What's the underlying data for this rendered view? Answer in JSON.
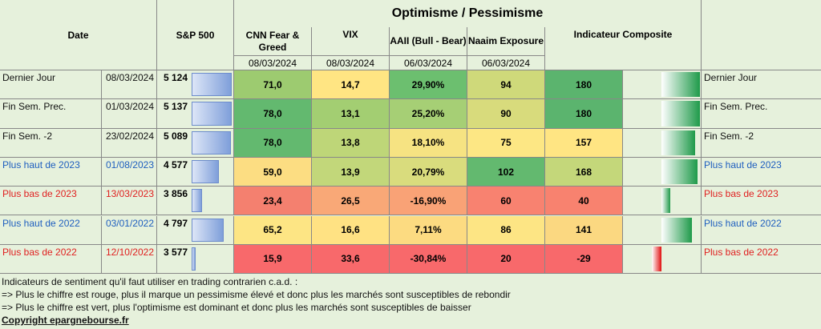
{
  "headers": {
    "date": "Date",
    "sp500": "S&P 500",
    "group": "Optimisme / Pessimisme",
    "cnn": "CNN Fear & Greed",
    "vix": "VIX",
    "aaii": "AAII (Bull - Bear)",
    "naaim": "Naaim Exposure",
    "composite": "Indicateur Composite",
    "cnn_date": "08/03/2024",
    "vix_date": "08/03/2024",
    "aaii_date": "06/03/2024",
    "naaim_date": "06/03/2024"
  },
  "rows": [
    {
      "label": "Dernier Jour",
      "date": "08/03/2024",
      "sp": "5 124",
      "sp_value": 5124,
      "cnn": "71,0",
      "vix": "14,7",
      "aaii": "29,90%",
      "naaim": "94",
      "comp": "180",
      "comp_value": 180,
      "label_color": "#111111",
      "colors": {
        "cnn": "#9dcb70",
        "vix": "#ffe583",
        "aaii": "#6cbf6f",
        "naaim": "#cfd97a",
        "comp": "#5bb46e"
      }
    },
    {
      "label": "Fin Sem. Prec.",
      "date": "01/03/2024",
      "sp": "5 137",
      "sp_value": 5137,
      "cnn": "78,0",
      "vix": "13,1",
      "aaii": "25,20%",
      "naaim": "90",
      "comp": "180",
      "comp_value": 180,
      "label_color": "#111111",
      "colors": {
        "cnn": "#63b96f",
        "vix": "#a3ce72",
        "aaii": "#a6cf75",
        "naaim": "#d8db7c",
        "comp": "#5bb46e"
      }
    },
    {
      "label": "Fin Sem. -2",
      "date": "23/02/2024",
      "sp": "5 089",
      "sp_value": 5089,
      "cnn": "78,0",
      "vix": "13,8",
      "aaii": "18,10%",
      "naaim": "75",
      "comp": "157",
      "comp_value": 157,
      "label_color": "#111111",
      "colors": {
        "cnn": "#63b96f",
        "vix": "#bed678",
        "aaii": "#f6e382",
        "naaim": "#fde784",
        "comp": "#ffe583"
      }
    },
    {
      "label": "Plus haut de 2023",
      "date": "01/08/2023",
      "sp": "4 577",
      "sp_value": 4577,
      "cnn": "59,0",
      "vix": "13,9",
      "aaii": "20,79%",
      "naaim": "102",
      "comp": "168",
      "comp_value": 168,
      "label_color": "#1f5fbf",
      "colors": {
        "cnn": "#fcdd82",
        "vix": "#c2d77a",
        "aaii": "#d9dc7d",
        "naaim": "#63b96f",
        "comp": "#c4d77a"
      }
    },
    {
      "label": "Plus bas de 2023",
      "date": "13/03/2023",
      "sp": "3 856",
      "sp_value": 3856,
      "cnn": "23,4",
      "vix": "26,5",
      "aaii": "-16,90%",
      "naaim": "60",
      "comp": "40",
      "comp_value": 40,
      "label_color": "#e02020",
      "colors": {
        "cnn": "#f4806f",
        "vix": "#f9a877",
        "aaii": "#f9a276",
        "naaim": "#f88270",
        "comp": "#f8826f"
      }
    },
    {
      "label": "Plus haut de 2022",
      "date": "03/01/2022",
      "sp": "4 797",
      "sp_value": 4797,
      "cnn": "65,2",
      "vix": "16,6",
      "aaii": "7,11%",
      "naaim": "86",
      "comp": "141",
      "comp_value": 141,
      "label_color": "#1f5fbf",
      "colors": {
        "cnn": "#fde584",
        "vix": "#ffe283",
        "aaii": "#fcdb81",
        "naaim": "#fde584",
        "comp": "#fbd881"
      }
    },
    {
      "label": "Plus bas de 2022",
      "date": "12/10/2022",
      "sp": "3 577",
      "sp_value": 3577,
      "cnn": "15,9",
      "vix": "33,6",
      "aaii": "-30,84%",
      "naaim": "20",
      "comp": "-29",
      "comp_value": -29,
      "label_color": "#e02020",
      "colors": {
        "cnn": "#f8696b",
        "vix": "#f8696b",
        "aaii": "#f8696b",
        "naaim": "#f8696b",
        "comp": "#f8696b"
      }
    }
  ],
  "footer": {
    "line1": "Indicateurs de sentiment qu'il faut utiliser en trading contrarien c.a.d. :",
    "line2": "=> Plus le chiffre est rouge, plus il marque un pessimisme élevé et donc plus les marchés sont susceptibles de rebondir",
    "line3": "=> Plus le chiffre est vert, plus l'optimisme est dominant et donc plus les marchés sont susceptibles de baisser",
    "copyright": "Copyright epargnebourse.fr"
  }
}
